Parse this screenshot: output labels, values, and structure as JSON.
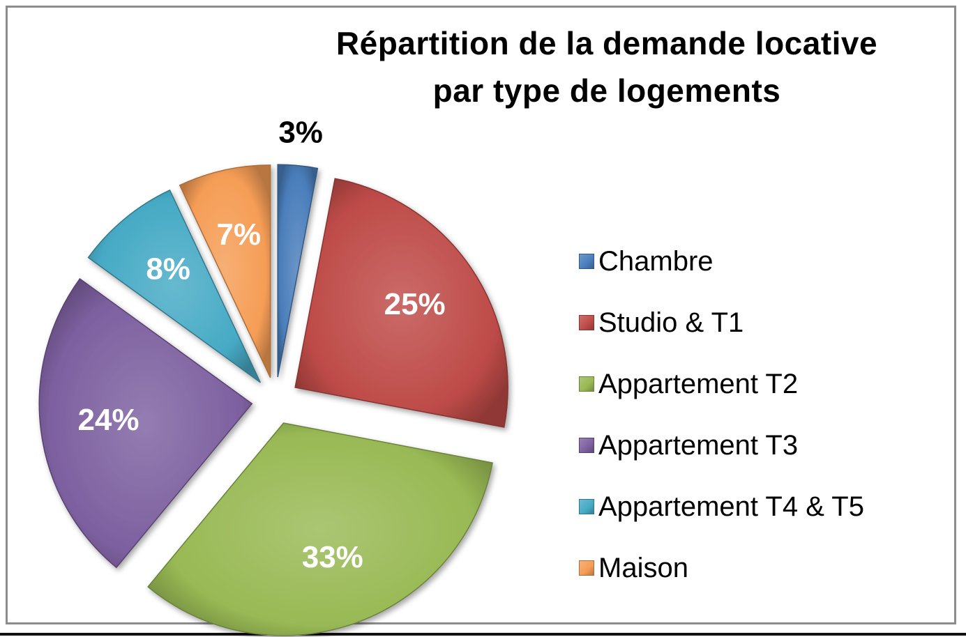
{
  "chart_data": {
    "type": "pie",
    "title": "Répartition de la demande locative par type de logements",
    "title_lines": [
      "Répartition de la demande locative",
      "par type de logements"
    ],
    "categories": [
      "Chambre",
      "Studio & T1",
      "Appartement T2",
      "Appartement T3",
      "Appartement T4 & T5",
      "Maison"
    ],
    "values": [
      3,
      25,
      33,
      24,
      8,
      7
    ],
    "labels": [
      "3%",
      "25%",
      "33%",
      "24%",
      "8%",
      "7%"
    ],
    "colors": [
      "#4a7ebb",
      "#be4b48",
      "#98b954",
      "#7d60a0",
      "#46aac5",
      "#f59d56"
    ],
    "exploded": true,
    "legend_position": "right"
  }
}
